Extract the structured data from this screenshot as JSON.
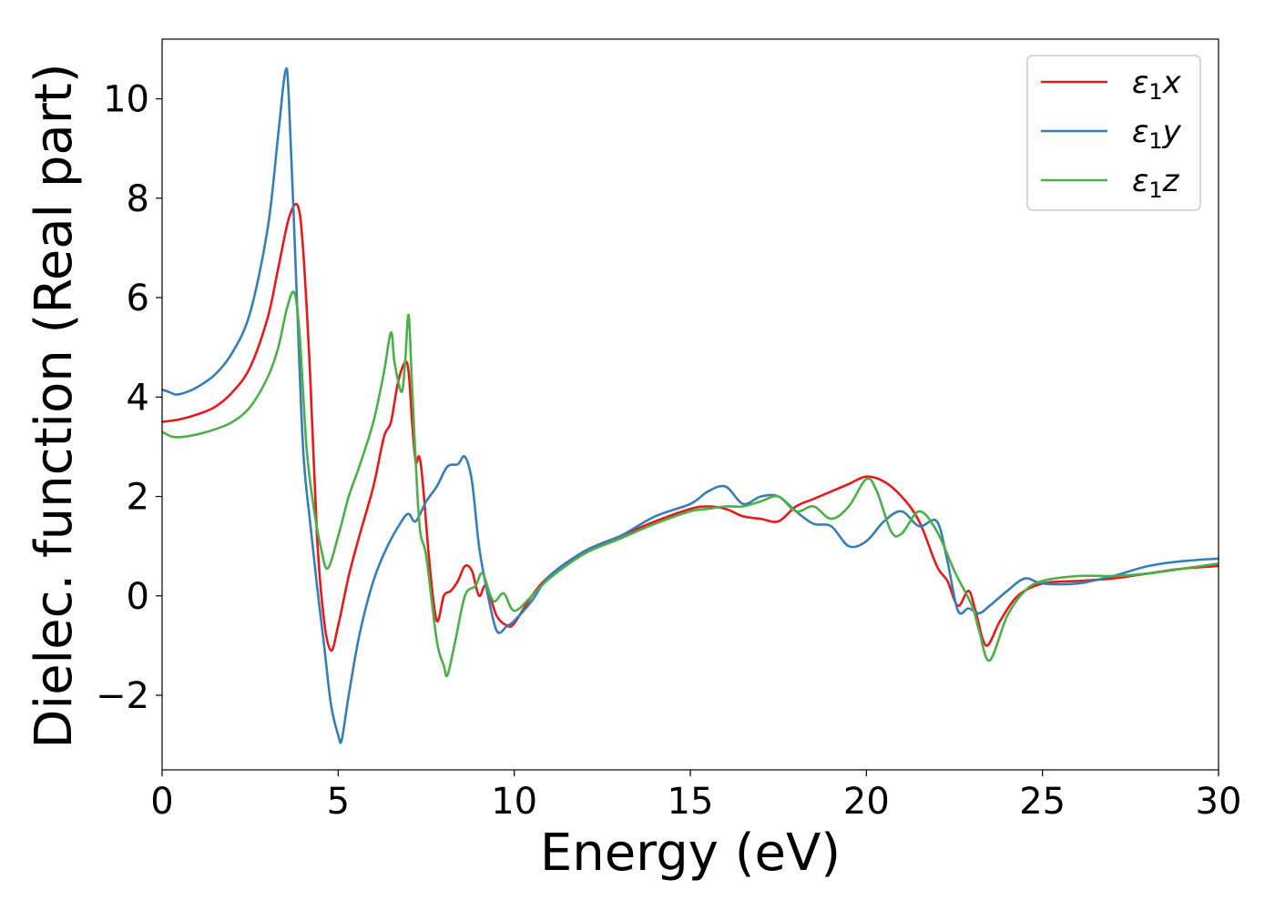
{
  "chart_data": {
    "type": "line",
    "xlabel": "Energy (eV)",
    "ylabel": "Dielec. function (Real part)",
    "xlim": [
      0,
      30
    ],
    "ylim": [
      -3.5,
      11.2
    ],
    "xticks": [
      0,
      5,
      10,
      15,
      20,
      25,
      30
    ],
    "xtick_labels": [
      "0",
      "5",
      "10",
      "15",
      "20",
      "25",
      "30"
    ],
    "yticks": [
      -2,
      0,
      2,
      4,
      6,
      8,
      10
    ],
    "ytick_labels": [
      "−2",
      "0",
      "2",
      "4",
      "6",
      "8",
      "10"
    ],
    "grid": false,
    "legend": {
      "position": "top-right"
    },
    "series": [
      {
        "name": "ε₁x",
        "legend_base": "ε",
        "legend_sub": "1",
        "legend_var": "x",
        "color": "#e41a1c",
        "x": [
          0,
          0.5,
          1,
          1.5,
          2,
          2.5,
          3,
          3.3,
          3.6,
          3.85,
          4.0,
          4.2,
          4.4,
          4.6,
          4.8,
          5.0,
          5.3,
          5.6,
          6.0,
          6.3,
          6.5,
          6.7,
          6.9,
          7.0,
          7.1,
          7.2,
          7.3,
          7.4,
          7.6,
          7.8,
          8.0,
          8.2,
          8.4,
          8.6,
          8.8,
          9.0,
          9.2,
          9.5,
          9.8,
          10.0,
          10.5,
          11,
          12,
          13,
          14,
          15,
          15.5,
          16,
          16.5,
          17,
          17.5,
          18,
          18.5,
          19,
          19.5,
          20,
          20.5,
          21,
          21.5,
          22,
          22.3,
          22.6,
          22.9,
          23.1,
          23.4,
          23.8,
          24.3,
          25,
          26,
          27,
          28,
          29,
          30
        ],
        "y": [
          3.5,
          3.55,
          3.65,
          3.8,
          4.1,
          4.6,
          5.6,
          6.6,
          7.6,
          7.85,
          7.0,
          4.5,
          1.2,
          -0.5,
          -1.1,
          -0.6,
          0.4,
          1.2,
          2.2,
          3.2,
          3.5,
          4.3,
          4.7,
          4.5,
          3.5,
          2.7,
          2.8,
          2.3,
          0.6,
          -0.5,
          0.0,
          0.1,
          0.3,
          0.6,
          0.5,
          0.0,
          0.2,
          -0.4,
          -0.6,
          -0.55,
          0.0,
          0.4,
          0.9,
          1.2,
          1.5,
          1.75,
          1.8,
          1.75,
          1.6,
          1.55,
          1.5,
          1.8,
          1.95,
          2.1,
          2.25,
          2.4,
          2.3,
          2.0,
          1.5,
          0.6,
          0.3,
          -0.2,
          0.1,
          -0.3,
          -1.0,
          -0.5,
          0.0,
          0.25,
          0.3,
          0.35,
          0.45,
          0.55,
          0.6
        ]
      },
      {
        "name": "ε₁y",
        "legend_base": "ε",
        "legend_sub": "1",
        "legend_var": "y",
        "color": "#377eb8",
        "x": [
          0,
          0.2,
          0.4,
          0.7,
          1,
          1.5,
          2,
          2.5,
          3,
          3.3,
          3.5,
          3.6,
          3.8,
          4.0,
          4.2,
          4.4,
          4.6,
          4.8,
          5.0,
          5.1,
          5.3,
          5.6,
          6.0,
          6.4,
          6.8,
          7.0,
          7.2,
          7.5,
          7.8,
          8.1,
          8.4,
          8.6,
          8.8,
          9.0,
          9.2,
          9.5,
          9.8,
          10.0,
          10.5,
          11,
          12,
          13,
          14,
          15,
          15.5,
          16,
          16.5,
          17,
          17.5,
          18,
          18.5,
          19,
          19.5,
          20,
          20.5,
          21,
          21.5,
          22,
          22.3,
          22.6,
          22.9,
          23.2,
          23.5,
          24,
          24.5,
          25,
          26,
          27,
          28,
          29,
          30
        ],
        "y": [
          4.15,
          4.1,
          4.05,
          4.1,
          4.2,
          4.45,
          4.9,
          5.7,
          7.4,
          9.3,
          10.55,
          10.0,
          6.5,
          3.0,
          1.5,
          0.2,
          -1.0,
          -2.2,
          -2.8,
          -2.9,
          -2.0,
          -0.8,
          0.3,
          1.0,
          1.5,
          1.65,
          1.5,
          1.9,
          2.2,
          2.6,
          2.65,
          2.8,
          2.3,
          1.0,
          0.2,
          -0.7,
          -0.6,
          -0.5,
          -0.1,
          0.4,
          0.9,
          1.2,
          1.6,
          1.85,
          2.1,
          2.2,
          1.85,
          2.0,
          2.0,
          1.7,
          1.45,
          1.4,
          1.0,
          1.1,
          1.5,
          1.7,
          1.4,
          1.5,
          0.7,
          -0.3,
          -0.25,
          -0.35,
          -0.2,
          0.1,
          0.35,
          0.25,
          0.25,
          0.4,
          0.6,
          0.7,
          0.75
        ]
      },
      {
        "name": "ε₁z",
        "legend_base": "ε",
        "legend_sub": "1",
        "legend_var": "z",
        "color": "#4daf4a",
        "x": [
          0,
          0.3,
          0.6,
          1,
          1.5,
          2,
          2.5,
          3,
          3.3,
          3.55,
          3.75,
          3.9,
          4.1,
          4.3,
          4.5,
          4.7,
          5.0,
          5.3,
          5.6,
          6.0,
          6.3,
          6.5,
          6.6,
          6.8,
          6.9,
          7.0,
          7.1,
          7.3,
          7.5,
          7.8,
          8.0,
          8.1,
          8.3,
          8.6,
          8.9,
          9.1,
          9.4,
          9.7,
          10.0,
          10.5,
          11,
          12,
          13,
          14,
          15,
          15.5,
          16,
          16.5,
          17,
          17.5,
          18,
          18.5,
          19,
          19.5,
          20,
          20.3,
          20.7,
          21,
          21.5,
          22,
          22.5,
          23,
          23.2,
          23.5,
          24,
          24.5,
          25,
          26,
          27,
          28,
          29,
          30
        ],
        "y": [
          3.3,
          3.2,
          3.2,
          3.25,
          3.35,
          3.5,
          3.8,
          4.4,
          5.0,
          5.8,
          6.1,
          5.3,
          3.0,
          1.8,
          1.0,
          0.55,
          1.2,
          2.0,
          2.6,
          3.5,
          4.5,
          5.3,
          4.7,
          4.1,
          4.7,
          5.65,
          4.2,
          1.5,
          0.8,
          -0.9,
          -1.4,
          -1.6,
          -1.0,
          0.0,
          0.2,
          0.45,
          -0.1,
          0.05,
          -0.3,
          0.0,
          0.35,
          0.85,
          1.15,
          1.45,
          1.7,
          1.75,
          1.8,
          1.8,
          1.9,
          2.0,
          1.7,
          1.8,
          1.55,
          1.8,
          2.35,
          2.1,
          1.3,
          1.25,
          1.7,
          1.3,
          0.5,
          -0.2,
          -0.7,
          -1.3,
          -0.4,
          0.1,
          0.3,
          0.4,
          0.4,
          0.45,
          0.55,
          0.65
        ]
      }
    ]
  }
}
